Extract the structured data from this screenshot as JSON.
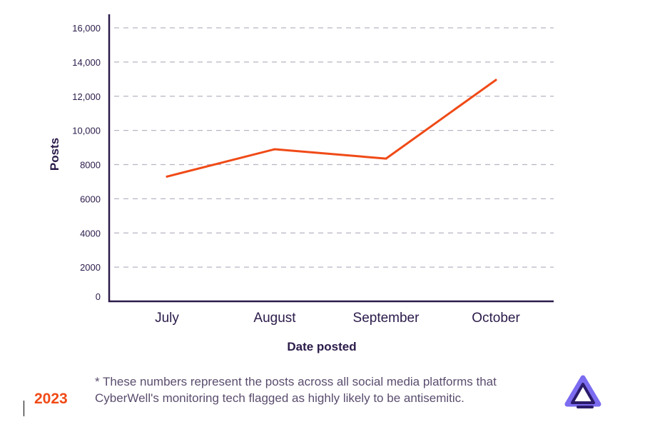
{
  "chart_data": {
    "type": "line",
    "categories": [
      "July",
      "August",
      "September",
      "October"
    ],
    "series": [
      {
        "values": [
          7300,
          8900,
          8350,
          12950
        ]
      }
    ],
    "xlabel": "Date posted",
    "ylabel": "Posts",
    "ylim": [
      0,
      16000
    ],
    "yticks": [
      0,
      2000,
      4000,
      6000,
      8000,
      10000,
      12000,
      14000,
      16000
    ],
    "ytick_labels": [
      "0",
      "2000",
      "4000",
      "6000",
      "8000",
      "10,000",
      "12,000",
      "14,000",
      "16,000"
    ],
    "grid": "horizontal-dashed",
    "colors": {
      "line": "#f04a17",
      "axis": "#2b1b4a",
      "grid": "#b9b3c4"
    }
  },
  "footnote": {
    "line1": "* These numbers represent the posts across all social media platforms that",
    "line2": "CyberWell's monitoring tech flagged as highly likely to be antisemitic."
  },
  "year": "2023",
  "logo": {
    "icon": "cyberwell-logo-icon",
    "colors": [
      "#7b6cf0",
      "#2b1b6a"
    ]
  }
}
